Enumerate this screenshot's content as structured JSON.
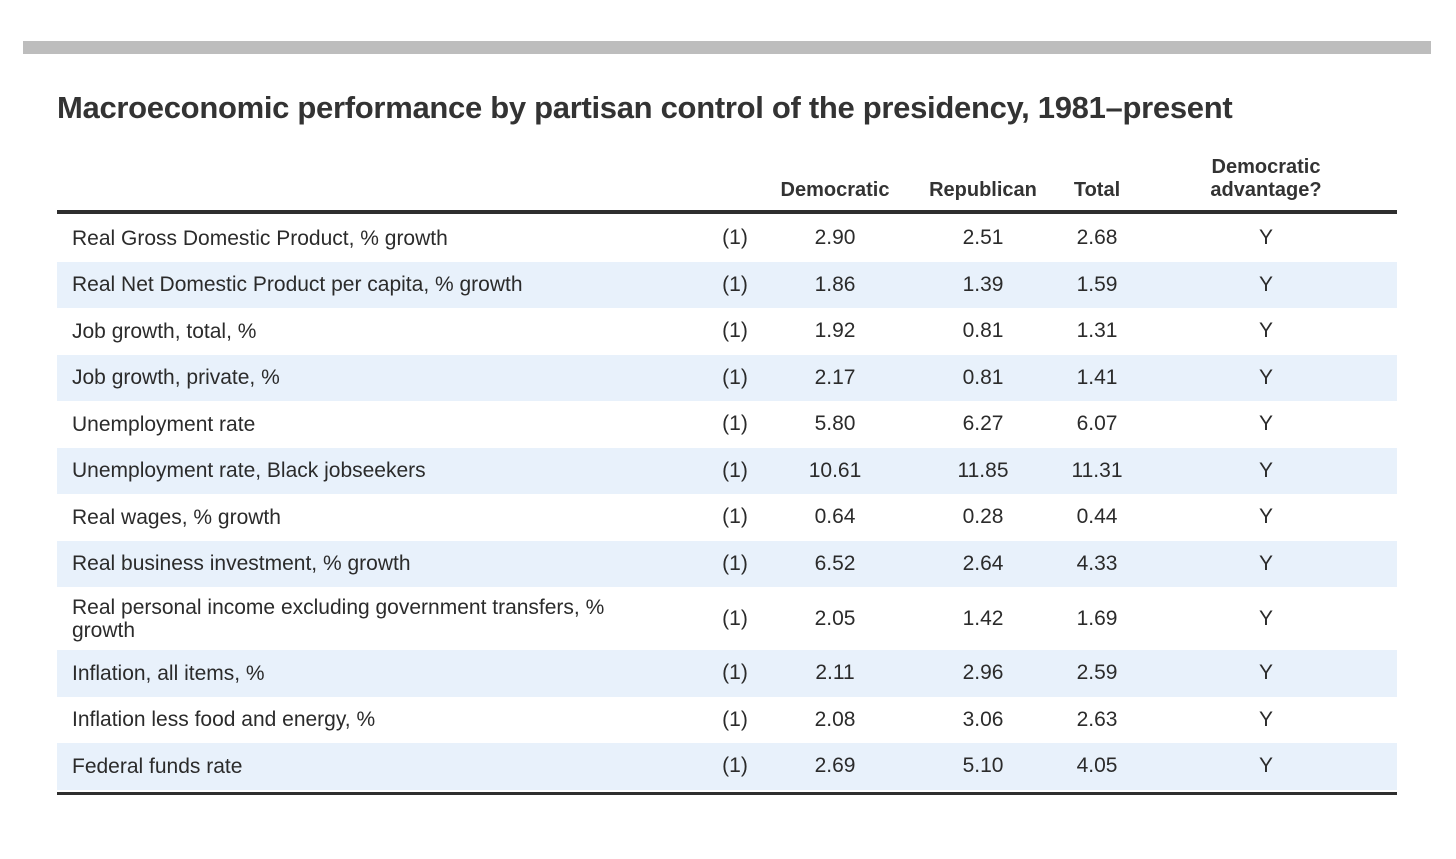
{
  "title": "Macroeconomic performance by partisan control of the presidency, 1981–present",
  "columns": {
    "democratic": "Democratic",
    "republican": "Republican",
    "total": "Total",
    "advantage": "Democratic advantage?"
  },
  "rows": [
    {
      "label": "Real Gross Domestic Product, % growth",
      "note": "(1)",
      "dem": "2.90",
      "rep": "2.51",
      "total": "2.68",
      "adv": "Y"
    },
    {
      "label": "Real Net Domestic Product per capita, % growth",
      "note": "(1)",
      "dem": "1.86",
      "rep": "1.39",
      "total": "1.59",
      "adv": "Y"
    },
    {
      "label": "Job growth, total, %",
      "note": "(1)",
      "dem": "1.92",
      "rep": "0.81",
      "total": "1.31",
      "adv": "Y"
    },
    {
      "label": "Job growth, private, %",
      "note": "(1)",
      "dem": "2.17",
      "rep": "0.81",
      "total": "1.41",
      "adv": "Y"
    },
    {
      "label": "Unemployment rate",
      "note": "(1)",
      "dem": "5.80",
      "rep": "6.27",
      "total": "6.07",
      "adv": "Y"
    },
    {
      "label": "Unemployment rate, Black jobseekers",
      "note": "(1)",
      "dem": "10.61",
      "rep": "11.85",
      "total": "11.31",
      "adv": "Y"
    },
    {
      "label": "Real wages, % growth",
      "note": "(1)",
      "dem": "0.64",
      "rep": "0.28",
      "total": "0.44",
      "adv": "Y"
    },
    {
      "label": "Real business investment, % growth",
      "note": "(1)",
      "dem": "6.52",
      "rep": "2.64",
      "total": "4.33",
      "adv": "Y"
    },
    {
      "label": "Real personal income excluding government transfers, % growth",
      "note": "(1)",
      "dem": "2.05",
      "rep": "1.42",
      "total": "1.69",
      "adv": "Y"
    },
    {
      "label": "Inflation, all items, %",
      "note": "(1)",
      "dem": "2.11",
      "rep": "2.96",
      "total": "2.59",
      "adv": "Y"
    },
    {
      "label": "Inflation less food and energy, %",
      "note": "(1)",
      "dem": "2.08",
      "rep": "3.06",
      "total": "2.63",
      "adv": "Y"
    },
    {
      "label": "Federal funds rate",
      "note": "(1)",
      "dem": "2.69",
      "rep": "5.10",
      "total": "4.05",
      "adv": "Y"
    }
  ]
}
